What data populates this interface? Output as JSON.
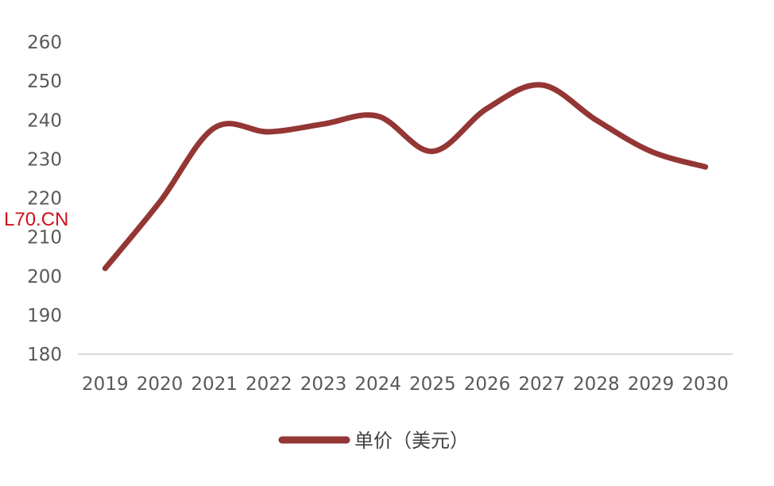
{
  "watermark": "L70.CN",
  "chart_data": {
    "type": "line",
    "title": "",
    "xlabel": "",
    "ylabel": "",
    "categories": [
      "2019",
      "2020",
      "2021",
      "2022",
      "2023",
      "2024",
      "2025",
      "2026",
      "2027",
      "2028",
      "2029",
      "2030"
    ],
    "series": [
      {
        "name": "单价（美元）",
        "values": [
          202,
          219,
          238,
          237,
          239,
          241,
          232,
          243,
          249,
          240,
          232,
          228
        ],
        "color": "#943634"
      }
    ],
    "ylim": [
      180,
      260
    ],
    "yticks": [
      "180",
      "190",
      "200",
      "210",
      "220",
      "230",
      "240",
      "250",
      "260"
    ],
    "grid": false,
    "smooth": true,
    "legend": "bottom-center"
  }
}
